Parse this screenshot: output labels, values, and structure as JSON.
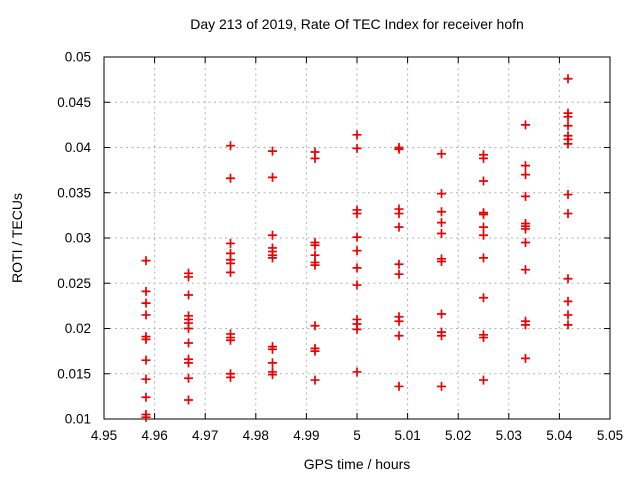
{
  "chart_data": {
    "type": "scatter",
    "title": "Day 213 of 2019, Rate Of TEC Index for receiver hofn",
    "xlabel": "GPS time / hours",
    "ylabel": "ROTI / TECUs",
    "xlim": [
      4.95,
      5.05
    ],
    "ylim": [
      0.01,
      0.05
    ],
    "xticks": [
      4.95,
      4.96,
      4.97,
      4.98,
      4.99,
      5.0,
      5.01,
      5.02,
      5.03,
      5.04,
      5.05
    ],
    "xtick_labels": [
      "4.95",
      "4.96",
      "4.97",
      "4.98",
      "4.99",
      "5",
      "5.01",
      "5.02",
      "5.03",
      "5.04",
      "5.05"
    ],
    "yticks": [
      0.01,
      0.015,
      0.02,
      0.025,
      0.03,
      0.035,
      0.04,
      0.045,
      0.05
    ],
    "ytick_labels": [
      "0.01",
      "0.015",
      "0.02",
      "0.025",
      "0.03",
      "0.035",
      "0.04",
      "0.045",
      "0.05"
    ],
    "grid": true,
    "legend": "none",
    "marker": "plus",
    "colors": {
      "marker": "#ee0000",
      "grid": "#b0b0b0",
      "border": "#000000",
      "text": "#000000",
      "background": "#ffffff"
    },
    "series": [
      {
        "name": "ROTI",
        "points": [
          [
            4.9583,
            0.0275
          ],
          [
            4.9583,
            0.0241
          ],
          [
            4.9583,
            0.0228
          ],
          [
            4.9583,
            0.0215
          ],
          [
            4.9583,
            0.0191
          ],
          [
            4.9583,
            0.0188
          ],
          [
            4.9583,
            0.0165
          ],
          [
            4.9583,
            0.0144
          ],
          [
            4.9583,
            0.0124
          ],
          [
            4.9583,
            0.0105
          ],
          [
            4.9583,
            0.0102
          ],
          [
            4.9667,
            0.0261
          ],
          [
            4.9667,
            0.0257
          ],
          [
            4.9667,
            0.0237
          ],
          [
            4.9667,
            0.0214
          ],
          [
            4.9667,
            0.021
          ],
          [
            4.9667,
            0.0206
          ],
          [
            4.9667,
            0.02
          ],
          [
            4.9667,
            0.0184
          ],
          [
            4.9667,
            0.0166
          ],
          [
            4.9667,
            0.0162
          ],
          [
            4.9667,
            0.0145
          ],
          [
            4.9667,
            0.0121
          ],
          [
            4.975,
            0.0402
          ],
          [
            4.975,
            0.0366
          ],
          [
            4.975,
            0.0294
          ],
          [
            4.975,
            0.0283
          ],
          [
            4.975,
            0.0276
          ],
          [
            4.975,
            0.0272
          ],
          [
            4.975,
            0.0262
          ],
          [
            4.975,
            0.0194
          ],
          [
            4.975,
            0.019
          ],
          [
            4.975,
            0.0187
          ],
          [
            4.975,
            0.015
          ],
          [
            4.975,
            0.0146
          ],
          [
            4.9833,
            0.0396
          ],
          [
            4.9833,
            0.0367
          ],
          [
            4.9833,
            0.0303
          ],
          [
            4.9833,
            0.0289
          ],
          [
            4.9833,
            0.0285
          ],
          [
            4.9833,
            0.0281
          ],
          [
            4.9833,
            0.0278
          ],
          [
            4.9833,
            0.018
          ],
          [
            4.9833,
            0.0177
          ],
          [
            4.9833,
            0.0162
          ],
          [
            4.9833,
            0.0152
          ],
          [
            4.9833,
            0.0149
          ],
          [
            4.9917,
            0.0395
          ],
          [
            4.9917,
            0.0388
          ],
          [
            4.9917,
            0.0295
          ],
          [
            4.9917,
            0.0292
          ],
          [
            4.9917,
            0.0281
          ],
          [
            4.9917,
            0.0273
          ],
          [
            4.9917,
            0.027
          ],
          [
            4.9917,
            0.0203
          ],
          [
            4.9917,
            0.0178
          ],
          [
            4.9917,
            0.0175
          ],
          [
            4.9917,
            0.0143
          ],
          [
            5.0,
            0.0414
          ],
          [
            5.0,
            0.0399
          ],
          [
            5.0,
            0.0331
          ],
          [
            5.0,
            0.0327
          ],
          [
            5.0,
            0.0301
          ],
          [
            5.0,
            0.0286
          ],
          [
            5.0,
            0.0267
          ],
          [
            5.0,
            0.0248
          ],
          [
            5.0,
            0.021
          ],
          [
            5.0,
            0.0205
          ],
          [
            5.0,
            0.0199
          ],
          [
            5.0,
            0.0152
          ],
          [
            5.0083,
            0.04
          ],
          [
            5.0083,
            0.0398
          ],
          [
            5.0083,
            0.0332
          ],
          [
            5.0083,
            0.0327
          ],
          [
            5.0083,
            0.0312
          ],
          [
            5.0083,
            0.0271
          ],
          [
            5.0083,
            0.026
          ],
          [
            5.0083,
            0.0213
          ],
          [
            5.0083,
            0.0208
          ],
          [
            5.0083,
            0.0192
          ],
          [
            5.0083,
            0.0136
          ],
          [
            5.0167,
            0.0393
          ],
          [
            5.0167,
            0.0349
          ],
          [
            5.0167,
            0.0329
          ],
          [
            5.0167,
            0.0317
          ],
          [
            5.0167,
            0.0305
          ],
          [
            5.0167,
            0.0277
          ],
          [
            5.0167,
            0.0274
          ],
          [
            5.0167,
            0.0216
          ],
          [
            5.0167,
            0.0196
          ],
          [
            5.0167,
            0.0192
          ],
          [
            5.0167,
            0.0136
          ],
          [
            5.025,
            0.0392
          ],
          [
            5.025,
            0.0388
          ],
          [
            5.025,
            0.0363
          ],
          [
            5.025,
            0.0328
          ],
          [
            5.025,
            0.0326
          ],
          [
            5.025,
            0.0312
          ],
          [
            5.025,
            0.0303
          ],
          [
            5.025,
            0.0278
          ],
          [
            5.025,
            0.0234
          ],
          [
            5.025,
            0.0193
          ],
          [
            5.025,
            0.019
          ],
          [
            5.025,
            0.0143
          ],
          [
            5.0333,
            0.0425
          ],
          [
            5.0333,
            0.038
          ],
          [
            5.0333,
            0.037
          ],
          [
            5.0333,
            0.0346
          ],
          [
            5.0333,
            0.0316
          ],
          [
            5.0333,
            0.0313
          ],
          [
            5.0333,
            0.031
          ],
          [
            5.0333,
            0.0295
          ],
          [
            5.0333,
            0.0265
          ],
          [
            5.0333,
            0.0208
          ],
          [
            5.0333,
            0.0204
          ],
          [
            5.0333,
            0.0167
          ],
          [
            5.0417,
            0.0476
          ],
          [
            5.0417,
            0.0438
          ],
          [
            5.0417,
            0.0434
          ],
          [
            5.0417,
            0.0424
          ],
          [
            5.0417,
            0.0413
          ],
          [
            5.0417,
            0.0409
          ],
          [
            5.0417,
            0.0404
          ],
          [
            5.0417,
            0.0348
          ],
          [
            5.0417,
            0.0327
          ],
          [
            5.0417,
            0.0255
          ],
          [
            5.0417,
            0.023
          ],
          [
            5.0417,
            0.0215
          ],
          [
            5.0417,
            0.0204
          ]
        ]
      }
    ]
  }
}
